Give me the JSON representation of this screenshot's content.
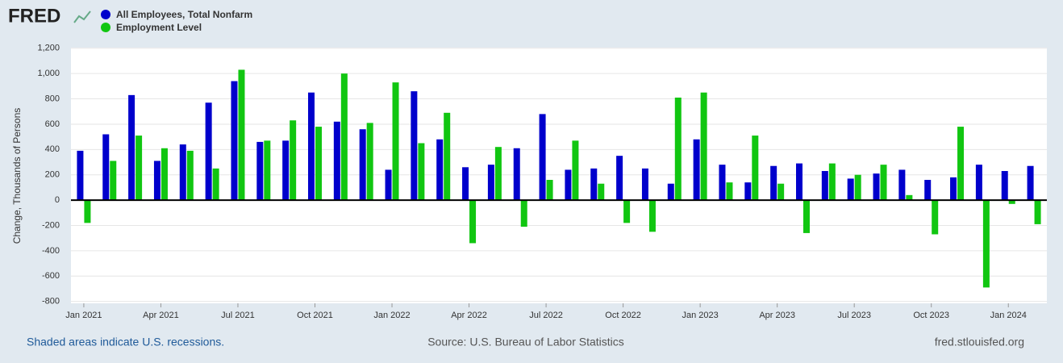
{
  "logo": "FRED",
  "chart_data": {
    "type": "bar",
    "y_label": "Change, Thousands of Persons",
    "categories": [
      "Jan 2021",
      null,
      null,
      "Apr 2021",
      null,
      null,
      "Jul 2021",
      null,
      null,
      "Oct 2021",
      null,
      null,
      "Jan 2022",
      null,
      null,
      "Apr 2022",
      null,
      null,
      "Jul 2022",
      null,
      null,
      "Oct 2022",
      null,
      null,
      "Jan 2023",
      null,
      null,
      "Apr 2023",
      null,
      null,
      "Jul 2023",
      null,
      null,
      "Oct 2023",
      null,
      null,
      "Jan 2024",
      null
    ],
    "series": [
      {
        "name": "All Employees, Total Nonfarm",
        "color": "#0000cc",
        "values": [
          390,
          520,
          830,
          310,
          440,
          770,
          940,
          460,
          470,
          850,
          620,
          560,
          240,
          860,
          480,
          260,
          280,
          410,
          680,
          240,
          250,
          350,
          250,
          130,
          480,
          280,
          140,
          270,
          290,
          230,
          170,
          210,
          240,
          160,
          180,
          280,
          230,
          270
        ]
      },
      {
        "name": "Employment Level",
        "color": "#11c611",
        "values": [
          -180,
          310,
          510,
          410,
          390,
          250,
          1030,
          470,
          630,
          580,
          1000,
          610,
          930,
          450,
          690,
          -340,
          420,
          -210,
          160,
          470,
          130,
          -180,
          -250,
          810,
          850,
          140,
          510,
          130,
          -260,
          290,
          200,
          280,
          40,
          -270,
          580,
          -690,
          -30,
          -190
        ]
      }
    ],
    "ylim": [
      -815,
      1205
    ],
    "yticks": [
      {
        "value": 1200,
        "label": "1,200"
      },
      {
        "value": 1000,
        "label": "1,000"
      },
      800,
      600,
      400,
      200,
      0,
      -200,
      -400,
      -600,
      -800
    ],
    "grid": true
  },
  "footer": {
    "left": "Shaded areas indicate U.S. recessions.",
    "center": "Source: U.S. Bureau of Labor Statistics",
    "right": "fred.stlouisfed.org"
  }
}
